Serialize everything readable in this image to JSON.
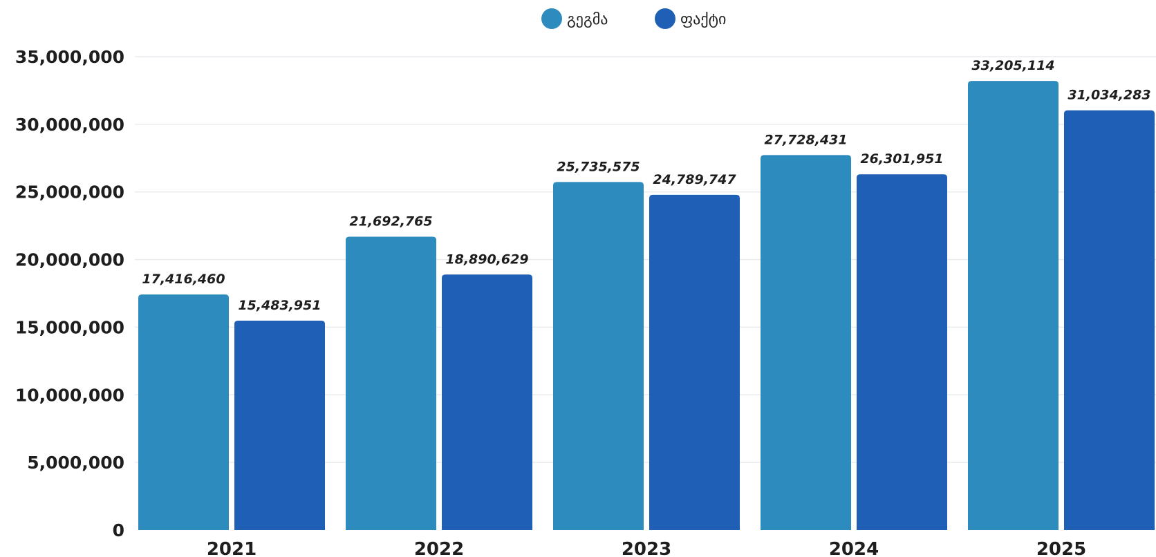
{
  "chart_data": {
    "type": "bar",
    "categories": [
      "2021",
      "2022",
      "2023",
      "2024",
      "2025"
    ],
    "series": [
      {
        "name": "გეგმა",
        "color": "#2e8bbd",
        "values": [
          17416460,
          21692765,
          25735575,
          27728431,
          33205114
        ],
        "labels": [
          "17,416,460",
          "21,692,765",
          "25,735,575",
          "27,728,431",
          "33,205,114"
        ]
      },
      {
        "name": "ფაქტი",
        "color": "#1f5fb5",
        "values": [
          15483951,
          18890629,
          24789747,
          26301951,
          31034283
        ],
        "labels": [
          "15,483,951",
          "18,890,629",
          "24,789,747",
          "26,301,951",
          "31,034,283"
        ]
      }
    ],
    "yticks": [
      "0",
      "5,000,000",
      "10,000,000",
      "15,000,000",
      "20,000,000",
      "25,000,000",
      "30,000,000",
      "35,000,000"
    ],
    "ylim": [
      0,
      35000000
    ],
    "grid": true,
    "legend": "top-center"
  }
}
